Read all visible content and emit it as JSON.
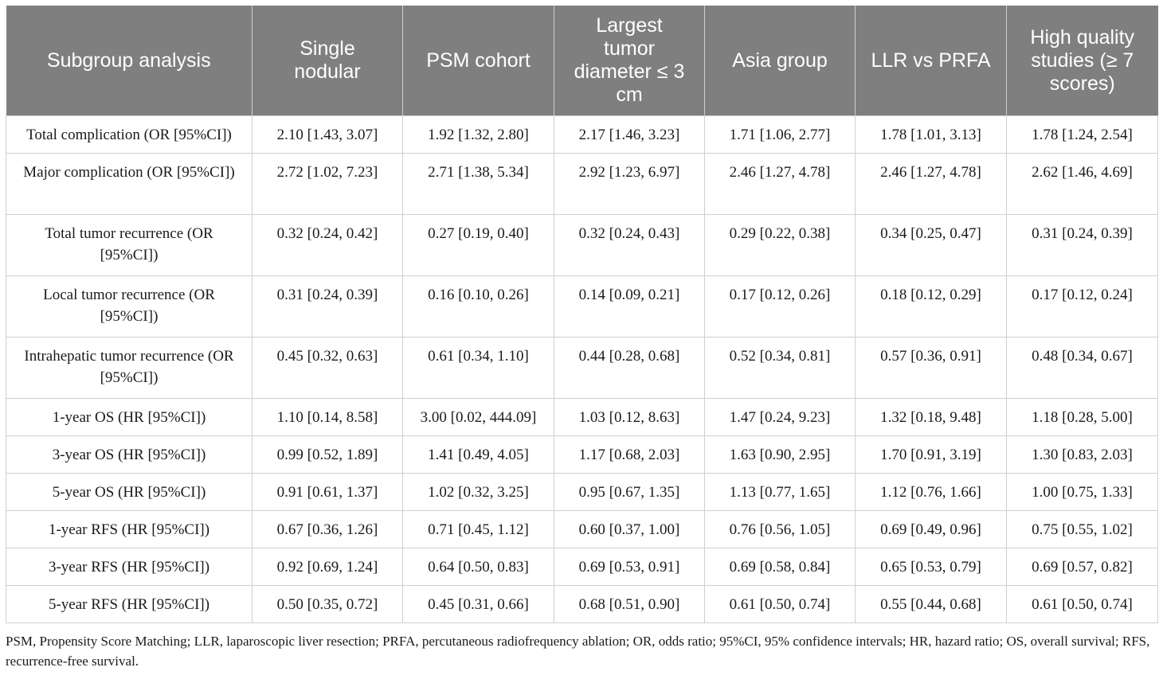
{
  "table": {
    "headers": [
      "Subgroup analysis",
      "Single nodular",
      "PSM cohort",
      "Largest tumor diameter ≤ 3 cm",
      "Asia group",
      "LLR vs PRFA",
      "High quality studies (≥ 7 scores)"
    ],
    "rows": [
      [
        "Total complication (OR [95%CI])",
        "2.10 [1.43, 3.07]",
        "1.92 [1.32, 2.80]",
        "2.17 [1.46, 3.23]",
        "1.71 [1.06, 2.77]",
        "1.78 [1.01, 3.13]",
        "1.78 [1.24, 2.54]"
      ],
      [
        "Major complication (OR [95%CI])",
        "2.72 [1.02, 7.23]",
        "2.71 [1.38, 5.34]",
        "2.92 [1.23, 6.97]",
        "2.46 [1.27, 4.78]",
        "2.46 [1.27, 4.78]",
        "2.62 [1.46, 4.69]"
      ],
      [
        "Total tumor recurrence (OR [95%CI])",
        "0.32 [0.24, 0.42]",
        "0.27 [0.19, 0.40]",
        "0.32 [0.24, 0.43]",
        "0.29 [0.22, 0.38]",
        "0.34 [0.25, 0.47]",
        "0.31 [0.24, 0.39]"
      ],
      [
        "Local tumor recurrence (OR [95%CI])",
        "0.31 [0.24, 0.39]",
        "0.16 [0.10, 0.26]",
        "0.14 [0.09, 0.21]",
        "0.17 [0.12, 0.26]",
        "0.18 [0.12, 0.29]",
        "0.17 [0.12, 0.24]"
      ],
      [
        "Intrahepatic tumor recurrence (OR [95%CI])",
        "0.45 [0.32, 0.63]",
        "0.61 [0.34, 1.10]",
        "0.44 [0.28, 0.68]",
        "0.52 [0.34, 0.81]",
        "0.57 [0.36, 0.91]",
        "0.48 [0.34, 0.67]"
      ],
      [
        "1-year OS (HR [95%CI])",
        "1.10 [0.14, 8.58]",
        "3.00 [0.02, 444.09]",
        "1.03 [0.12, 8.63]",
        "1.47 [0.24, 9.23]",
        "1.32 [0.18, 9.48]",
        "1.18 [0.28, 5.00]"
      ],
      [
        "3-year OS (HR [95%CI])",
        "0.99 [0.52, 1.89]",
        "1.41 [0.49, 4.05]",
        "1.17 [0.68, 2.03]",
        "1.63 [0.90, 2.95]",
        "1.70 [0.91, 3.19]",
        "1.30 [0.83, 2.03]"
      ],
      [
        "5-year OS (HR [95%CI])",
        "0.91 [0.61, 1.37]",
        "1.02 [0.32, 3.25]",
        "0.95 [0.67, 1.35]",
        "1.13 [0.77, 1.65]",
        "1.12 [0.76, 1.66]",
        "1.00 [0.75, 1.33]"
      ],
      [
        "1-year RFS (HR [95%CI])",
        "0.67 [0.36, 1.26]",
        "0.71 [0.45, 1.12]",
        "0.60 [0.37, 1.00]",
        "0.76 [0.56, 1.05]",
        "0.69 [0.49, 0.96]",
        "0.75 [0.55, 1.02]"
      ],
      [
        "3-year RFS (HR [95%CI])",
        "0.92 [0.69, 1.24]",
        "0.64 [0.50, 0.83]",
        "0.69 [0.53, 0.91]",
        "0.69 [0.58, 0.84]",
        "0.65 [0.53, 0.79]",
        "0.69 [0.57, 0.82]"
      ],
      [
        "5-year RFS (HR [95%CI])",
        "0.50 [0.35, 0.72]",
        "0.45 [0.31, 0.66]",
        "0.68 [0.51, 0.90]",
        "0.61 [0.50, 0.74]",
        "0.55 [0.44, 0.68]",
        "0.61 [0.50, 0.74]"
      ]
    ]
  },
  "footnote": "PSM, Propensity Score Matching; LLR, laparoscopic liver resection; PRFA, percutaneous radiofrequency ablation; OR, odds ratio; 95%CI, 95% confidence intervals; HR, hazard ratio; OS, overall survival; RFS, recurrence-free survival.",
  "colors": {
    "header_background": "#7f7f7f",
    "header_text": "#ffffff",
    "grid_lines": "#cfcfcf",
    "body_text": "#1a1a1a"
  }
}
